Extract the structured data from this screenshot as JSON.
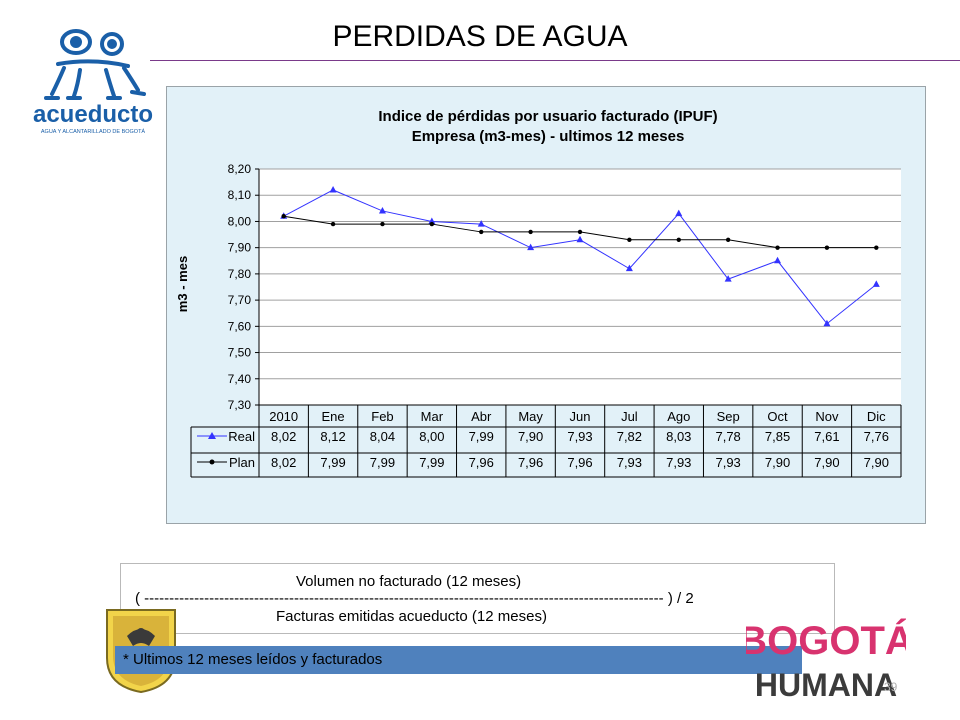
{
  "slide": {
    "title": "PERDIDAS DE AGUA",
    "logo_text": "acueducto",
    "logo_subtext": "AGUA Y ALCANTARILLADO DE BOGOTÁ",
    "formula_numerator": "Volumen no facturado (12 meses)",
    "formula_dash": "( -------------------------------------------------------------------------------------------------------- ) / 2",
    "formula_denominator": "Facturas emitidas acueducto (12 meses)",
    "note": "* Ultimos 12 meses leídos y facturados",
    "page_number": "39",
    "bogota_logo_top": "BOGOTÁ",
    "bogota_logo_bottom": "HUMANA"
  },
  "colors": {
    "real": "#3333ff",
    "plan": "#000000",
    "panel_bg": "#e2f1f8",
    "note_bar": "#4f81bd",
    "logo_blue": "#1a5fa8"
  },
  "chart_data": {
    "type": "line",
    "title": "Indice de pérdidas por usuario facturado (IPUF)",
    "subtitle": "Empresa  (m3-mes) - ultimos 12 meses",
    "ylabel": "m3 - mes",
    "xlabel": "",
    "ylim": [
      7.3,
      8.2
    ],
    "yticks": [
      "8,20",
      "8,10",
      "8,00",
      "7,90",
      "7,80",
      "7,70",
      "7,60",
      "7,50",
      "7,40",
      "7,30"
    ],
    "grid": true,
    "categories": [
      "2010",
      "Ene",
      "Feb",
      "Mar",
      "Abr",
      "May",
      "Jun",
      "Jul",
      "Ago",
      "Sep",
      "Oct",
      "Nov",
      "Dic"
    ],
    "series": [
      {
        "name": "Real",
        "values": [
          8.02,
          8.12,
          8.04,
          8.0,
          7.99,
          7.9,
          7.93,
          7.82,
          8.03,
          7.78,
          7.85,
          7.61,
          7.76
        ],
        "labels": [
          "8,02",
          "8,12",
          "8,04",
          "8,00",
          "7,99",
          "7,90",
          "7,93",
          "7,82",
          "8,03",
          "7,78",
          "7,85",
          "7,61",
          "7,76"
        ]
      },
      {
        "name": "Plan",
        "values": [
          8.02,
          7.99,
          7.99,
          7.99,
          7.96,
          7.96,
          7.96,
          7.93,
          7.93,
          7.93,
          7.9,
          7.9,
          7.9
        ],
        "labels": [
          "8,02",
          "7,99",
          "7,99",
          "7,99",
          "7,96",
          "7,96",
          "7,96",
          "7,93",
          "7,93",
          "7,93",
          "7,90",
          "7,90",
          "7,90"
        ]
      }
    ]
  }
}
